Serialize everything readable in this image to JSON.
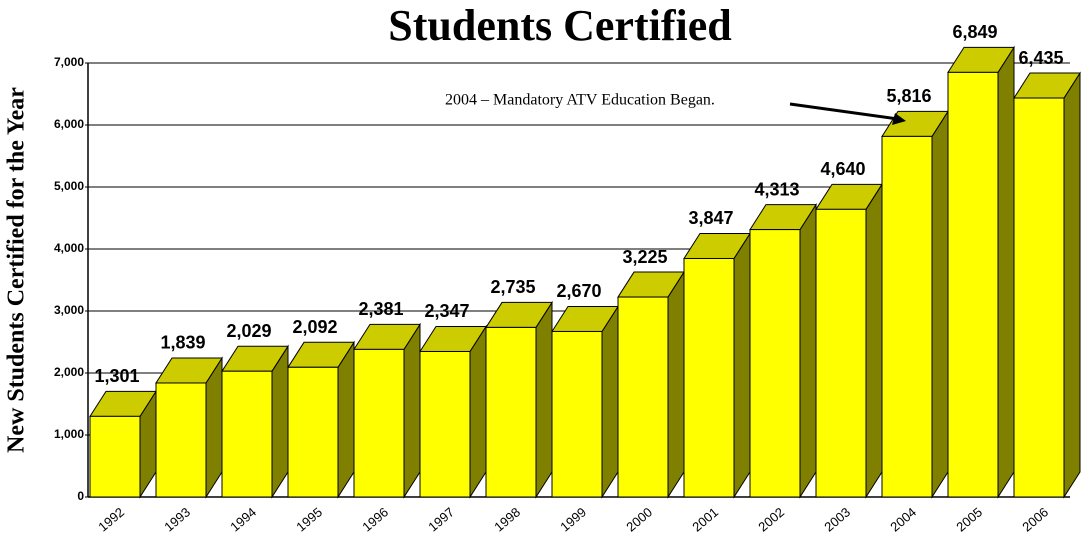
{
  "chart_data": {
    "type": "bar3d",
    "title": "Students Certified",
    "ylabel": "New Students Certified for the Year",
    "annotation": "2004 – Mandatory ATV Education Began.",
    "categories": [
      "1992",
      "1993",
      "1994",
      "1995",
      "1996",
      "1997",
      "1998",
      "1999",
      "2000",
      "2001",
      "2002",
      "2003",
      "2004",
      "2005",
      "2006"
    ],
    "values": [
      1301,
      1839,
      2029,
      2092,
      2381,
      2347,
      2735,
      2670,
      3225,
      3847,
      4313,
      4640,
      5816,
      6849,
      6435
    ],
    "value_labels": [
      "1,301",
      "1,839",
      "2,029",
      "2,092",
      "2,381",
      "2,347",
      "2,735",
      "2,670",
      "3,225",
      "3,847",
      "4,313",
      "4,640",
      "5,816",
      "6,849",
      "6,435"
    ],
    "color": "#ffff00",
    "ylim": [
      0,
      7000
    ],
    "yticks": [
      0,
      {
        "value": 1000,
        "label": "1,000"
      },
      {
        "value": 2000,
        "label": "2,000"
      },
      {
        "value": 3000,
        "label": "3,000"
      },
      {
        "value": 4000,
        "label": "4,000"
      },
      {
        "value": 5000,
        "label": "5,000"
      },
      {
        "value": 6000,
        "label": "6,000"
      },
      {
        "value": 7000,
        "label": "7,000"
      }
    ],
    "grid": true
  }
}
